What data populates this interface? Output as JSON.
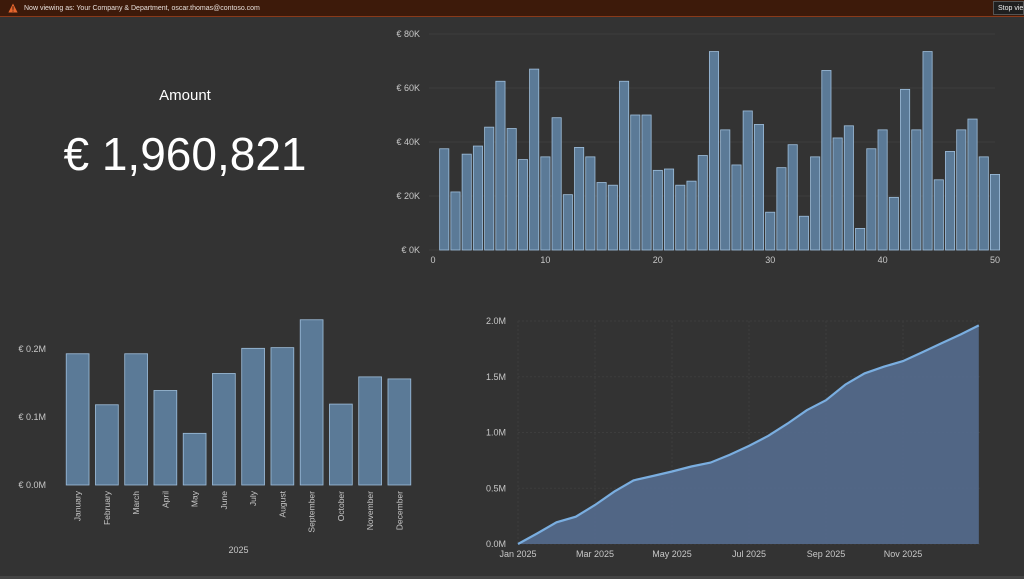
{
  "banner": {
    "text": "Now viewing as: Your Company & Department, oscar.thomas@contoso.com",
    "stop_label": "Stop viewing",
    "icon": "warning-icon"
  },
  "kpi": {
    "title": "Amount",
    "value": "€ 1,960,821"
  },
  "chart_data": [
    {
      "type": "bar",
      "ylabel": "",
      "ylim": [
        0,
        80000
      ],
      "yticks": [
        "€ 0K",
        "€ 20K",
        "€ 40K",
        "€ 60K",
        "€ 80K"
      ],
      "xticks": [
        "0",
        "10",
        "20",
        "30",
        "40",
        "50"
      ],
      "x": [
        1,
        2,
        3,
        4,
        5,
        6,
        7,
        8,
        9,
        10,
        11,
        12,
        13,
        14,
        15,
        16,
        17,
        18,
        19,
        20,
        21,
        22,
        23,
        24,
        25,
        26,
        27,
        28,
        29,
        30,
        31,
        32,
        33,
        34,
        35,
        36,
        37,
        38,
        39,
        40,
        41,
        42,
        43,
        44,
        45,
        46,
        47,
        48,
        49,
        50
      ],
      "values": [
        37500,
        21500,
        35500,
        38500,
        45500,
        62500,
        45000,
        33500,
        67000,
        34500,
        49000,
        20500,
        38000,
        34500,
        25000,
        24000,
        62500,
        50000,
        50000,
        29500,
        30000,
        24000,
        25500,
        35000,
        73500,
        44500,
        31500,
        51500,
        46500,
        14000,
        30500,
        39000,
        12500,
        34500,
        66500,
        41500,
        46000,
        8000,
        37500,
        44500,
        19500,
        59500,
        44500,
        73500,
        26000,
        36500,
        44500,
        48500,
        34500,
        28000
      ],
      "color": "#5b7a97"
    },
    {
      "type": "bar",
      "xlabel": "2025",
      "ylim": [
        0,
        250000
      ],
      "yticks": [
        "€ 0.0M",
        "€ 0.1M",
        "€ 0.2M"
      ],
      "categories": [
        "January",
        "February",
        "March",
        "April",
        "May",
        "June",
        "July",
        "August",
        "September",
        "October",
        "November",
        "December"
      ],
      "values": [
        193000,
        118000,
        193000,
        139000,
        76000,
        164000,
        201000,
        202000,
        243000,
        119000,
        159000,
        156000
      ],
      "color": "#5b7a97"
    },
    {
      "type": "area",
      "ylim": [
        0,
        2000000
      ],
      "yticks": [
        "0.0M",
        "0.5M",
        "1.0M",
        "1.5M",
        "2.0M"
      ],
      "xticks": [
        "Jan 2025",
        "Mar 2025",
        "May 2025",
        "Jul 2025",
        "Sep 2025",
        "Nov 2025"
      ],
      "x_months": [
        0,
        0.5,
        1,
        1.5,
        2,
        2.5,
        3,
        3.5,
        4,
        4.5,
        5,
        5.5,
        6,
        6.5,
        7,
        7.5,
        8,
        8.5,
        9,
        9.5,
        10,
        10.5,
        11,
        11.5,
        11.97
      ],
      "values": [
        0,
        95000,
        195000,
        245000,
        350000,
        470000,
        570000,
        610000,
        650000,
        695000,
        730000,
        800000,
        880000,
        970000,
        1080000,
        1200000,
        1290000,
        1430000,
        1530000,
        1590000,
        1640000,
        1720000,
        1800000,
        1880000,
        1960821
      ],
      "color": "#7aaee0",
      "fill": "#53698a"
    }
  ]
}
